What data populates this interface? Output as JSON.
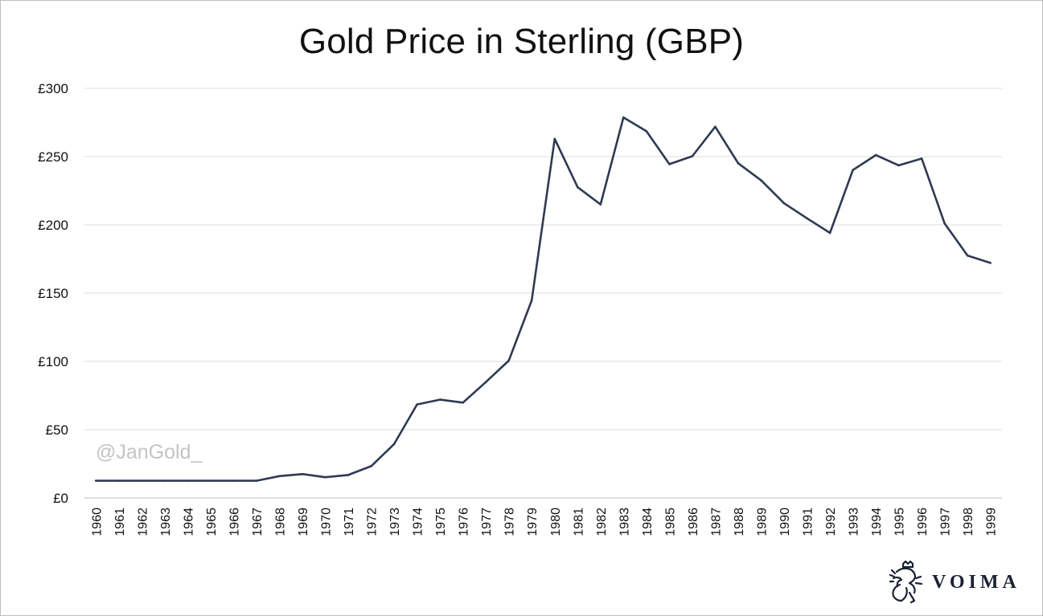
{
  "chart_data": {
    "type": "line",
    "title": "Gold Price in Sterling (GBP)",
    "xlabel": "",
    "ylabel": "",
    "ylim": [
      0,
      300
    ],
    "y_ticks": [
      "£0",
      "£50",
      "£100",
      "£150",
      "£200",
      "£250",
      "£300"
    ],
    "y_tick_values": [
      0,
      50,
      100,
      150,
      200,
      250,
      300
    ],
    "grid": "horizontal",
    "line_color": "#2e3a52",
    "categories": [
      "1960",
      "1961",
      "1962",
      "1963",
      "1964",
      "1965",
      "1966",
      "1967",
      "1968",
      "1969",
      "1970",
      "1971",
      "1972",
      "1973",
      "1974",
      "1975",
      "1976",
      "1977",
      "1978",
      "1979",
      "1980",
      "1981",
      "1982",
      "1983",
      "1984",
      "1985",
      "1986",
      "1987",
      "1988",
      "1989",
      "1990",
      "1991",
      "1992",
      "1993",
      "1994",
      "1995",
      "1996",
      "1997",
      "1998",
      "1999"
    ],
    "series": [
      {
        "values": [
          12.6,
          12.6,
          12.6,
          12.6,
          12.6,
          12.6,
          12.6,
          12.6,
          16.0,
          17.5,
          15.2,
          16.8,
          23.3,
          39.5,
          68.5,
          72.0,
          69.8,
          84.9,
          100.6,
          144.7,
          263.0,
          227.6,
          215.0,
          278.7,
          268.6,
          244.5,
          250.3,
          271.9,
          245.1,
          232.6,
          215.8,
          204.8,
          194.1,
          240.2,
          251.1,
          243.6,
          248.6,
          201.0,
          177.5,
          172.1
        ]
      }
    ]
  },
  "watermark": "@JanGold_",
  "brand": {
    "name": "VOIMA",
    "color": "#1b2233",
    "icon": "lion-crest-icon"
  }
}
